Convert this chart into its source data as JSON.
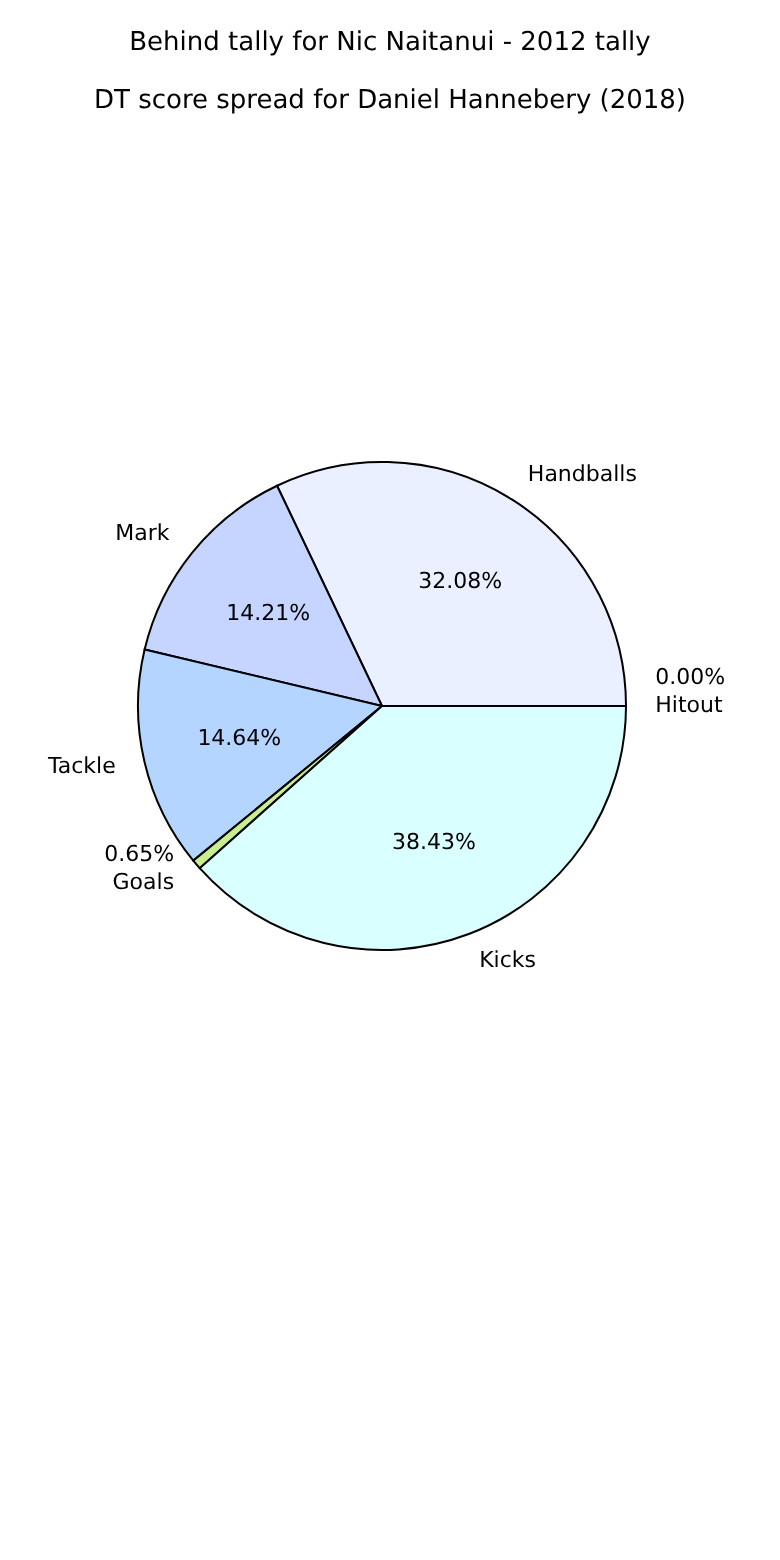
{
  "chart_data": {
    "type": "pie",
    "title": "Behind tally for Nic Naitanui - 2012 tally",
    "subtitle": "DT score spread for Daniel Hannebery (2018)",
    "categories": [
      "Handballs",
      "Mark",
      "Tackle",
      "Goals",
      "Kicks",
      "Hitout"
    ],
    "values": [
      32.08,
      14.21,
      14.64,
      0.65,
      38.43,
      0.0
    ],
    "colors": [
      "#eaf0ff",
      "#c5d5ff",
      "#b3d5ff",
      "#c9ee8f",
      "#d9ffff",
      "#e8e8e8"
    ],
    "value_labels": [
      "32.08%",
      "14.21%",
      "14.64%",
      "0.65%",
      "38.43%",
      "0.00%"
    ],
    "legend": false
  }
}
